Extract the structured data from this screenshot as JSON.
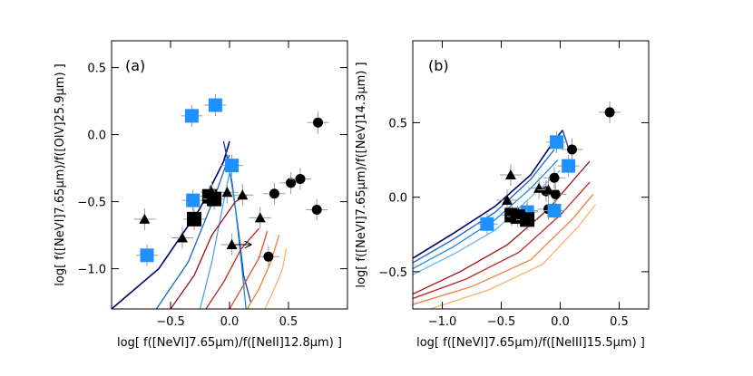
{
  "chart_data": [
    {
      "type": "scatter",
      "panel_label": "(a)",
      "xlabel": "log[  f([NeVI]7.65μm)/f([NeII]12.8μm)  ]",
      "ylabel": "log[  f([NeVI]7.65μm)/f([OIV]25.9μm)  ]",
      "xlim": [
        -1.0,
        1.0
      ],
      "ylim": [
        -1.3,
        0.7
      ],
      "xticks": [
        -0.5,
        0.0,
        0.5
      ],
      "xtick_labels": [
        "−0.5",
        "0.0",
        "0.5"
      ],
      "yticks": [
        -1.0,
        -0.5,
        0.0,
        0.5
      ],
      "ytick_labels": [
        "−1.0",
        "−0.5",
        "0.0",
        "0.5"
      ],
      "series": [
        {
          "marker": "circle",
          "color": "#000000",
          "points": [
            [
              0.75,
              0.09
            ],
            [
              0.38,
              -0.44
            ],
            [
              0.52,
              -0.36
            ],
            [
              0.6,
              -0.33
            ],
            [
              0.74,
              -0.56
            ],
            [
              0.33,
              -0.91
            ]
          ]
        },
        {
          "marker": "triangle",
          "color": "#000000",
          "points": [
            [
              -0.72,
              -0.63
            ],
            [
              -0.4,
              -0.77
            ],
            [
              -0.15,
              -0.43
            ],
            [
              -0.02,
              -0.43
            ],
            [
              0.11,
              -0.45
            ],
            [
              0.26,
              -0.62
            ],
            [
              0.02,
              -0.82
            ]
          ]
        },
        {
          "marker": "square",
          "color": "#1e90ff",
          "points": [
            [
              -0.7,
              -0.9
            ],
            [
              -0.32,
              0.14
            ],
            [
              -0.12,
              0.22
            ],
            [
              0.02,
              -0.23
            ],
            [
              -0.31,
              -0.49
            ]
          ]
        },
        {
          "marker": "big-square",
          "color": "#000000",
          "points": [
            [
              -0.3,
              -0.63
            ],
            [
              -0.17,
              -0.46
            ],
            [
              -0.13,
              -0.48
            ]
          ]
        }
      ],
      "arrow": {
        "from": [
          0.0,
          -0.82
        ],
        "to": [
          0.18,
          -0.82
        ]
      },
      "models": [
        {
          "color": "#000066",
          "points": [
            [
              -1.0,
              -1.3
            ],
            [
              -0.6,
              -1.0
            ],
            [
              -0.25,
              -0.55
            ],
            [
              -0.05,
              -0.2
            ],
            [
              0.0,
              -0.05
            ]
          ]
        },
        {
          "color": "#0a3fa0",
          "points": [
            [
              -0.05,
              -0.05
            ],
            [
              0.02,
              -0.35
            ],
            [
              0.08,
              -0.75
            ],
            [
              0.12,
              -1.05
            ],
            [
              0.18,
              -1.25
            ]
          ]
        },
        {
          "color": "#1565c0",
          "points": [
            [
              -0.62,
              -1.3
            ],
            [
              -0.35,
              -0.95
            ],
            [
              -0.12,
              -0.45
            ],
            [
              0.0,
              -0.15
            ]
          ]
        },
        {
          "color": "#1e88e5",
          "points": [
            [
              -0.02,
              -0.15
            ],
            [
              0.05,
              -0.55
            ],
            [
              0.1,
              -0.95
            ],
            [
              0.14,
              -1.3
            ]
          ]
        },
        {
          "color": "#4aa3f0",
          "points": [
            [
              -0.25,
              -1.3
            ],
            [
              -0.15,
              -0.95
            ],
            [
              -0.05,
              -0.5
            ],
            [
              0.02,
              -0.2
            ]
          ]
        },
        {
          "color": "#a01010",
          "points": [
            [
              -0.5,
              -1.3
            ],
            [
              -0.3,
              -1.05
            ],
            [
              -0.15,
              -0.75
            ],
            [
              0.05,
              -0.5
            ],
            [
              0.15,
              -0.45
            ]
          ]
        },
        {
          "color": "#c0281e",
          "points": [
            [
              -0.2,
              -1.3
            ],
            [
              -0.05,
              -1.1
            ],
            [
              0.1,
              -0.85
            ],
            [
              0.25,
              -0.7
            ]
          ]
        },
        {
          "color": "#e04a2a",
          "points": [
            [
              0.0,
              -1.3
            ],
            [
              0.12,
              -1.12
            ],
            [
              0.25,
              -0.92
            ],
            [
              0.32,
              -0.72
            ]
          ]
        },
        {
          "color": "#f0803c",
          "points": [
            [
              0.15,
              -1.3
            ],
            [
              0.25,
              -1.15
            ],
            [
              0.35,
              -0.95
            ],
            [
              0.42,
              -0.75
            ]
          ]
        },
        {
          "color": "#f6b26b",
          "points": [
            [
              0.3,
              -1.3
            ],
            [
              0.38,
              -1.15
            ],
            [
              0.45,
              -1.0
            ],
            [
              0.48,
              -0.85
            ]
          ]
        }
      ]
    },
    {
      "type": "scatter",
      "panel_label": "(b)",
      "xlabel": "log[  f([NeVI]7.65μm)/f([NeIII]15.5μm)  ]",
      "ylabel": "log[  f([NeVI]7.65μm)/f([NeV]14.3μm)  ]",
      "xlim": [
        -1.25,
        0.75
      ],
      "ylim": [
        -0.75,
        1.05
      ],
      "xticks": [
        -1.0,
        -0.5,
        0.0,
        0.5
      ],
      "xtick_labels": [
        "−1.0",
        "−0.5",
        "0.0",
        "0.5"
      ],
      "yticks": [
        -0.5,
        0.0,
        0.5
      ],
      "ytick_labels": [
        "−0.5",
        "0.0",
        "0.5"
      ],
      "series": [
        {
          "marker": "circle",
          "color": "#000000",
          "points": [
            [
              0.42,
              0.57
            ],
            [
              0.1,
              0.32
            ],
            [
              -0.05,
              0.13
            ],
            [
              -0.12,
              0.04
            ],
            [
              -0.04,
              0.02
            ],
            [
              -0.1,
              -0.08
            ]
          ]
        },
        {
          "marker": "triangle",
          "color": "#000000",
          "points": [
            [
              -0.42,
              0.15
            ],
            [
              -0.45,
              -0.02
            ],
            [
              -0.18,
              0.06
            ],
            [
              -0.1,
              0.05
            ],
            [
              -0.28,
              -0.09
            ]
          ]
        },
        {
          "marker": "square",
          "color": "#1e90ff",
          "points": [
            [
              -0.62,
              -0.18
            ],
            [
              -0.03,
              0.37
            ],
            [
              0.07,
              0.21
            ],
            [
              -0.28,
              -0.1
            ],
            [
              -0.05,
              -0.09
            ]
          ]
        },
        {
          "marker": "big-square",
          "color": "#000000",
          "points": [
            [
              -0.41,
              -0.12
            ],
            [
              -0.36,
              -0.13
            ],
            [
              -0.28,
              -0.15
            ]
          ]
        }
      ],
      "models": [
        {
          "color": "#000066",
          "points": [
            [
              -1.25,
              -0.41
            ],
            [
              -0.9,
              -0.24
            ],
            [
              -0.55,
              -0.06
            ],
            [
              -0.25,
              0.15
            ],
            [
              -0.05,
              0.38
            ],
            [
              0.02,
              0.45
            ]
          ]
        },
        {
          "color": "#0a3fa0",
          "points": [
            [
              0.02,
              0.45
            ],
            [
              0.05,
              0.38
            ],
            [
              0.08,
              0.3
            ]
          ]
        },
        {
          "color": "#1565c0",
          "points": [
            [
              -1.25,
              -0.44
            ],
            [
              -0.9,
              -0.28
            ],
            [
              -0.55,
              -0.1
            ],
            [
              -0.25,
              0.12
            ],
            [
              -0.05,
              0.32
            ]
          ]
        },
        {
          "color": "#1e88e5",
          "points": [
            [
              -1.25,
              -0.48
            ],
            [
              -0.9,
              -0.33
            ],
            [
              -0.55,
              -0.15
            ],
            [
              -0.25,
              0.06
            ],
            [
              -0.02,
              0.25
            ]
          ]
        },
        {
          "color": "#6ab7f5",
          "points": [
            [
              -1.25,
              -0.52
            ],
            [
              -0.9,
              -0.38
            ],
            [
              -0.55,
              -0.22
            ],
            [
              -0.25,
              0.0
            ],
            [
              0.0,
              0.18
            ]
          ]
        },
        {
          "color": "#a01010",
          "points": [
            [
              -1.25,
              -0.65
            ],
            [
              -0.85,
              -0.5
            ],
            [
              -0.45,
              -0.32
            ],
            [
              -0.1,
              -0.08
            ],
            [
              0.15,
              0.15
            ],
            [
              0.25,
              0.24
            ]
          ]
        },
        {
          "color": "#c0281e",
          "points": [
            [
              -1.25,
              -0.68
            ],
            [
              -0.8,
              -0.55
            ],
            [
              -0.35,
              -0.37
            ],
            [
              0.0,
              -0.12
            ],
            [
              0.25,
              0.1
            ]
          ]
        },
        {
          "color": "#f0803c",
          "points": [
            [
              -1.25,
              -0.72
            ],
            [
              -0.75,
              -0.6
            ],
            [
              -0.25,
              -0.42
            ],
            [
              0.1,
              -0.15
            ],
            [
              0.28,
              0.02
            ]
          ]
        },
        {
          "color": "#f6b26b",
          "points": [
            [
              -1.1,
              -0.75
            ],
            [
              -0.6,
              -0.62
            ],
            [
              -0.15,
              -0.45
            ],
            [
              0.15,
              -0.2
            ],
            [
              0.3,
              -0.05
            ]
          ]
        }
      ]
    }
  ]
}
